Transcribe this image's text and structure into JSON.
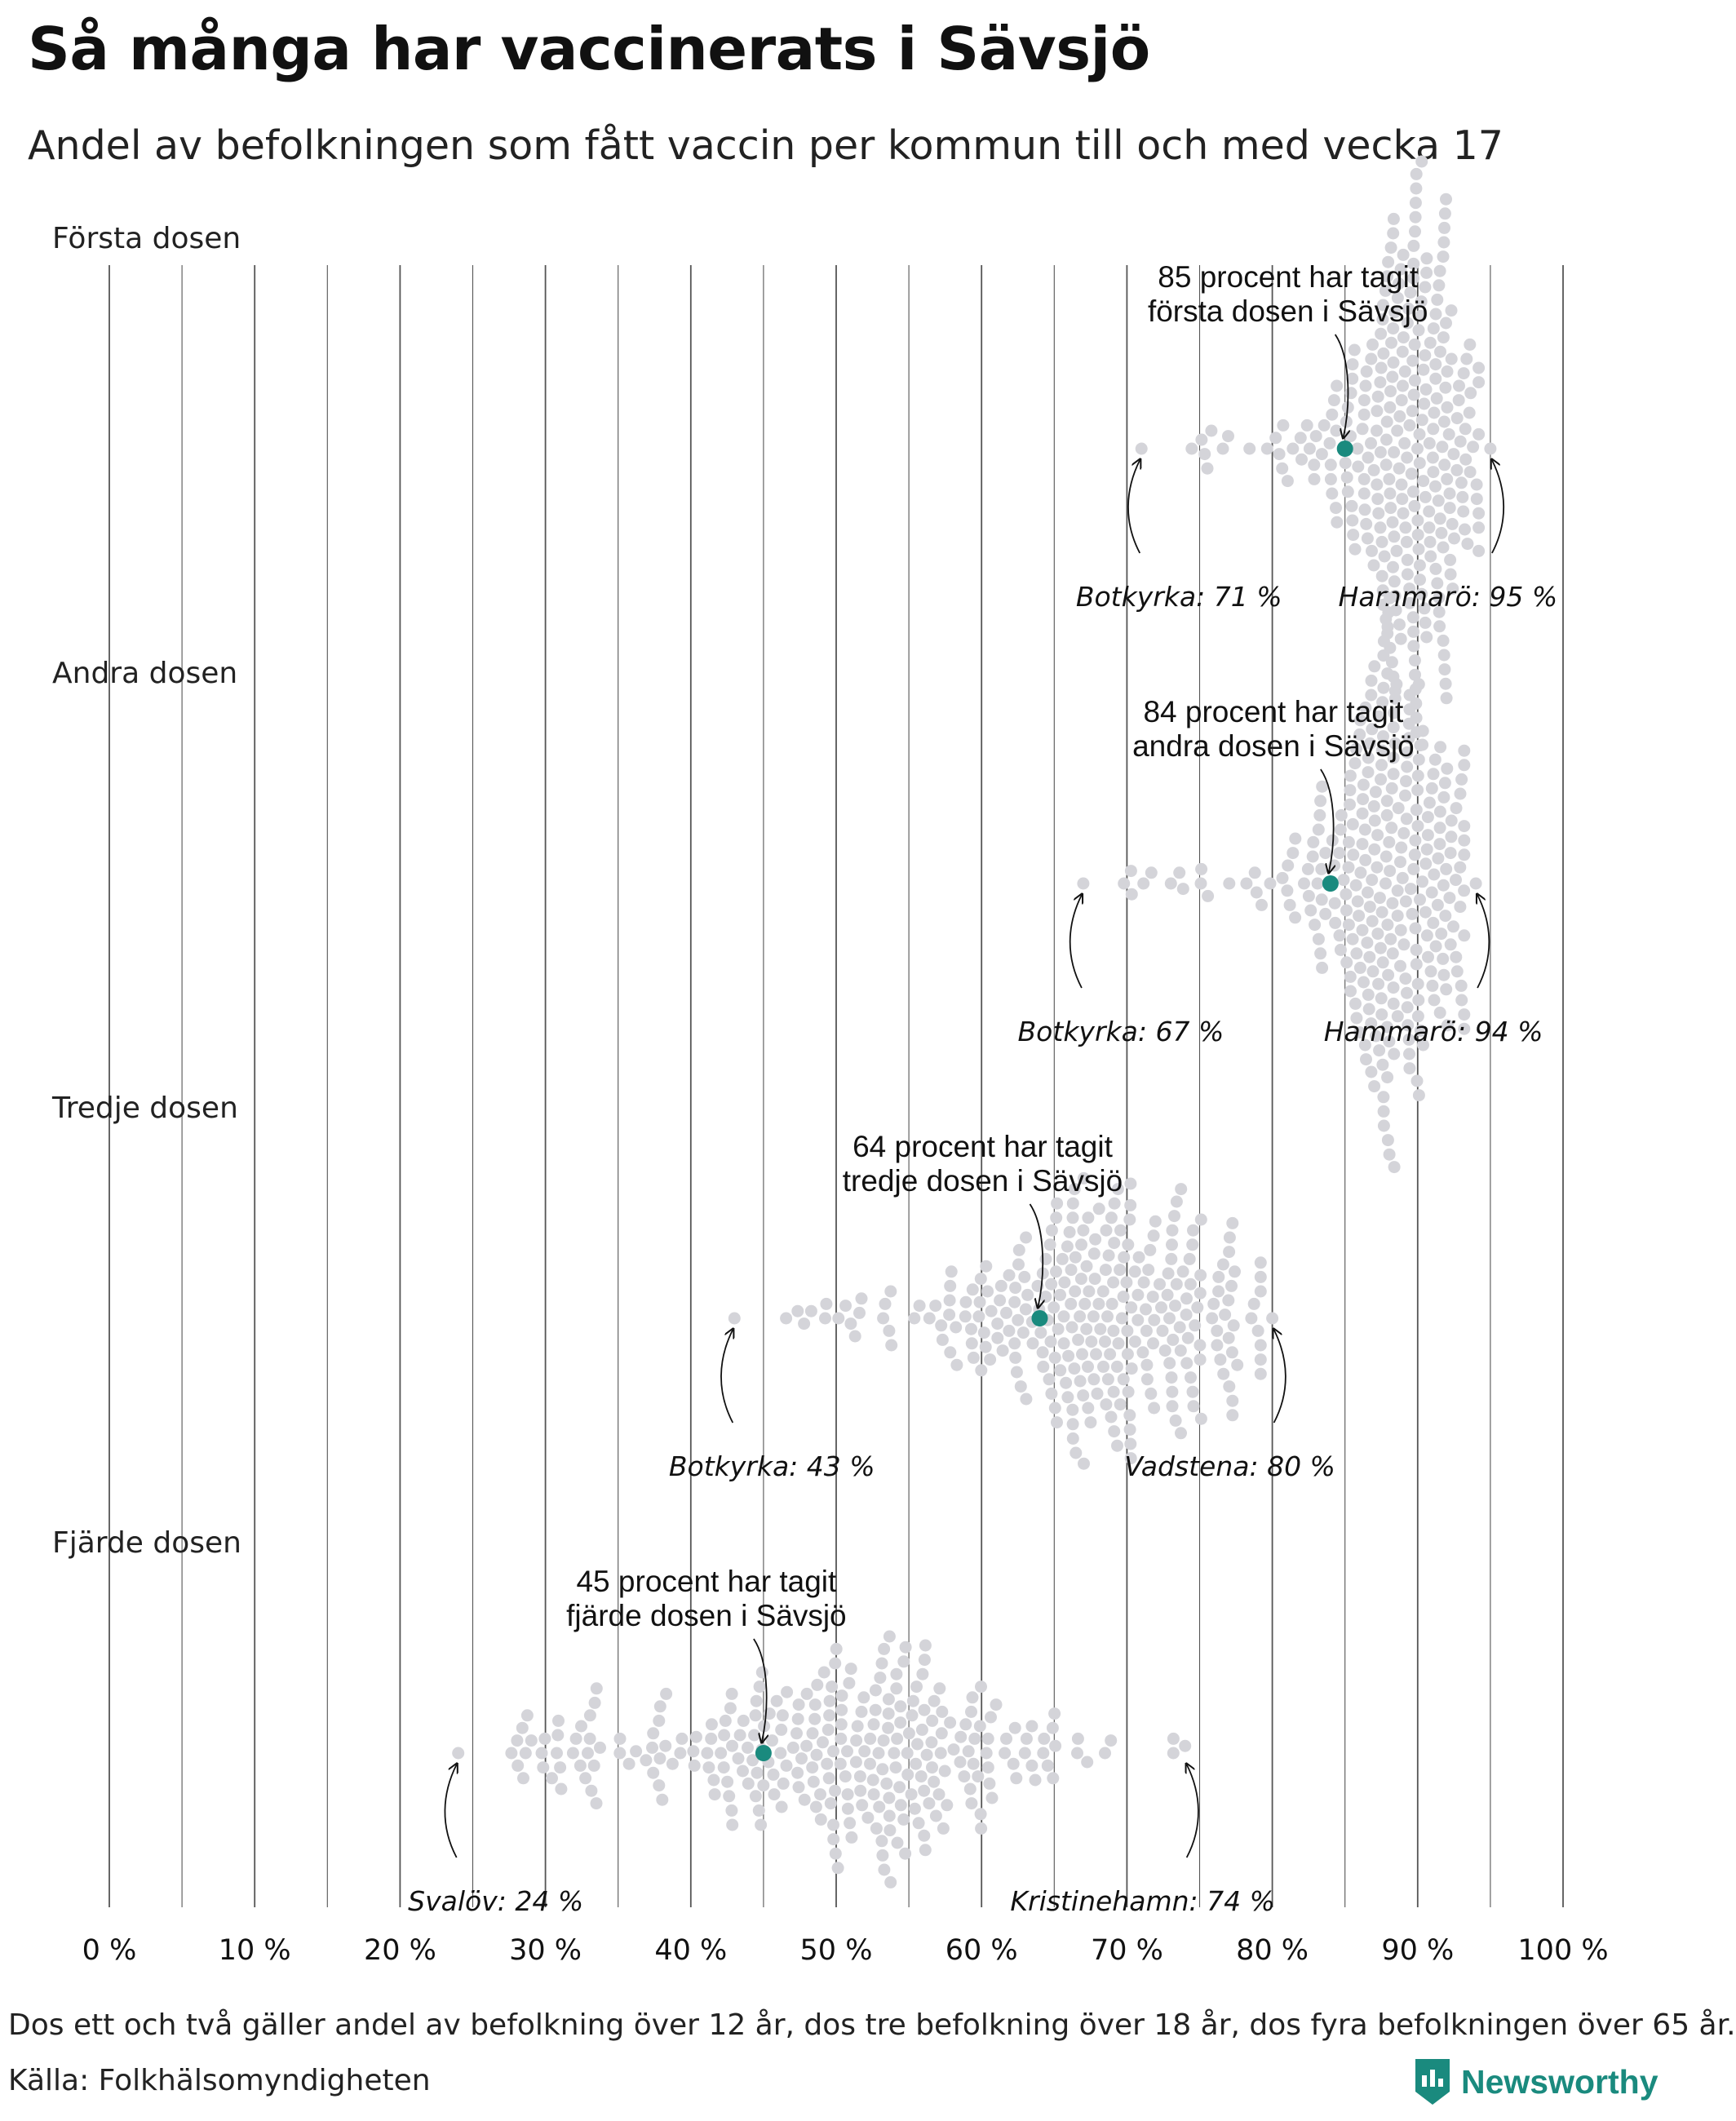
{
  "title": "Så många har vaccinerats i Sävsjö",
  "subtitle": "Andel av befolkningen som fått vaccin per kommun till och med vecka 17",
  "footnote": "Dos ett och två gäller andel av befolkning över 12 år, dos tre befolkning över 18 år, dos fyra befolkningen över 65 år.",
  "source": "Källa: Folkhälsomyndigheten",
  "brand": {
    "name": "Newsworthy",
    "color": "#1a8a7e",
    "icon": "newsworthy-bars-icon"
  },
  "colors": {
    "highlight": "#1a8a7e",
    "dots": "#d4d4d9",
    "grid": "#555555"
  },
  "chart_data": {
    "type": "beeswarm",
    "x_tick_labels": [
      "0 %",
      "10 %",
      "20 %",
      "30 %",
      "40 %",
      "50 %",
      "60 %",
      "70 %",
      "80 %",
      "90 %",
      "100 %"
    ],
    "xlim": [
      0,
      100
    ],
    "grid": true,
    "panels": [
      {
        "label": "Första dosen",
        "min": 71,
        "max": 95,
        "center": 89.5,
        "spread": 2.6,
        "highlight": 85,
        "annotation": [
          "85 procent har tagit",
          "första dosen i Sävsjö"
        ],
        "min_label": "Botkyrka: 71 %",
        "max_label": "Hammarö: 95 %"
      },
      {
        "label": "Andra dosen",
        "min": 67,
        "max": 94,
        "center": 88,
        "spread": 3.0,
        "highlight": 84,
        "annotation": [
          "84 procent har tagit",
          "andra dosen i Sävsjö"
        ],
        "min_label": "Botkyrka: 67 %",
        "max_label": "Hammarö: 94 %"
      },
      {
        "label": "Tredje dosen",
        "min": 43,
        "max": 80,
        "center": 69,
        "spread": 5.2,
        "highlight": 64,
        "annotation": [
          "64 procent har tagit",
          "tredje dosen i Sävsjö"
        ],
        "min_label": "Botkyrka: 43 %",
        "max_label": "Vadstena: 80 %"
      },
      {
        "label": "Fjärde dosen",
        "min": 24,
        "max": 74,
        "center": 51,
        "spread": 8.5,
        "highlight": 45,
        "annotation": [
          "45 procent har tagit",
          "fjärde dosen i Sävsjö"
        ],
        "min_label": "Svalöv: 24 %",
        "max_label": "Kristinehamn: 74 %"
      }
    ]
  }
}
